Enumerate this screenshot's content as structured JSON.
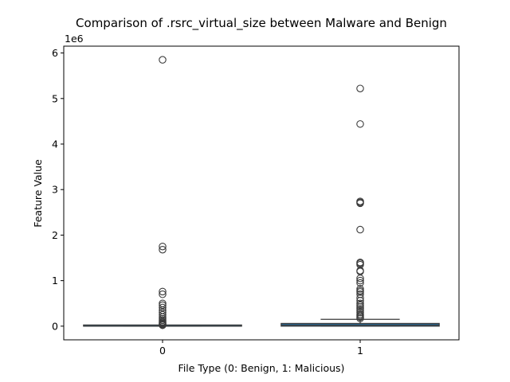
{
  "chart_data": {
    "type": "box",
    "title": "Comparison of .rsrc_virtual_size between Malware and Benign",
    "xlabel": "File Type (0: Benign, 1: Malicious)",
    "ylabel": "Feature Value",
    "y_offset_label": "1e6",
    "categories": [
      "0",
      "1"
    ],
    "y_ticks": [
      0,
      1000000,
      2000000,
      3000000,
      4000000,
      5000000,
      6000000
    ],
    "y_tick_labels": [
      "0",
      "1",
      "2",
      "3",
      "4",
      "5",
      "6"
    ],
    "ylim": [
      -300000,
      6150000
    ],
    "grid": false,
    "colors": {
      "box_fill": "#1f77b4",
      "line": "#3a3a3a"
    },
    "boxes": [
      {
        "category": "0",
        "whisker_low": 0,
        "q1": 0,
        "median": 0,
        "q3": 5000,
        "whisker_high": 8000,
        "outliers": [
          5850000,
          1750000,
          1680000,
          760000,
          700000,
          500000,
          460000,
          410000,
          350000,
          300000,
          250000,
          200000,
          160000,
          130000,
          100000,
          80000,
          60000,
          45000,
          30000,
          20000
        ]
      },
      {
        "category": "1",
        "whisker_low": 0,
        "q1": 0,
        "median": 25000,
        "q3": 60000,
        "whisker_high": 150000,
        "outliers": [
          5220000,
          4440000,
          2740000,
          2720000,
          2700000,
          2120000,
          1400000,
          1380000,
          1350000,
          1220000,
          1200000,
          1050000,
          1000000,
          950000,
          820000,
          780000,
          750000,
          700000,
          620000,
          560000,
          500000,
          460000,
          420000,
          380000,
          340000,
          300000,
          260000,
          230000,
          200000,
          170000
        ]
      }
    ]
  }
}
